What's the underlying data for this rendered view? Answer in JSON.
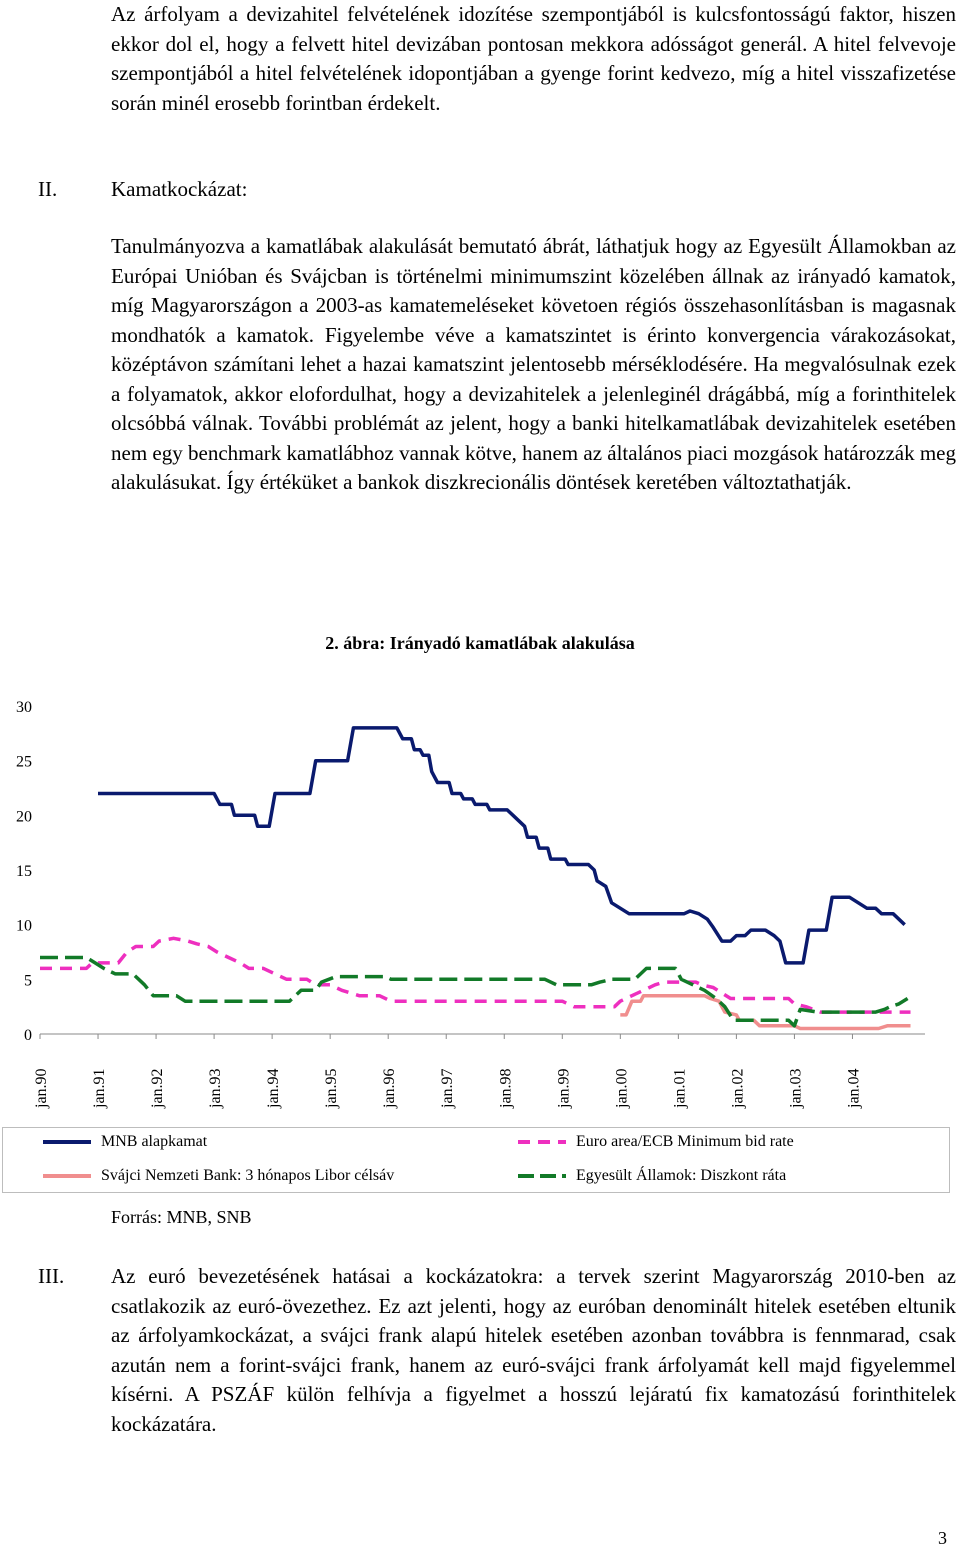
{
  "paragraphs": {
    "intro": "Az árfolyam a devizahitel felvételének idozítése szempontjából is kulcsfontosságú faktor, hiszen ekkor dol el, hogy a felvett hitel devizában pontosan mekkora adósságot generál. A hitel felvevoje szempontjából a hitel felvételének idopontjában a gyenge forint kedvezo, míg a hitel visszafizetése során minél erosebb forintban érdekelt.",
    "interest": "Tanulmányozva a kamatlábak alakulását bemutató ábrát, láthatjuk hogy az Egyesült Államokban az Európai Unióban és Svájcban is történelmi minimumszint közelében állnak az irányadó kamatok, míg Magyarországon a 2003-as kamatemeléseket követoen régiós összehasonlításban is magasnak mondhatók a kamatok. Figyelembe véve a kamatszintet is érinto konvergencia várakozásokat, középtávon számítani lehet a hazai kamatszint jelentosebb mérséklodésére. Ha megvalósulnak ezek a folyamatok, akkor elofordulhat, hogy a devizahitelek a jelenleginél drágábbá, míg a forinthitelek olcsóbbá válnak. További problémát az jelent, hogy a banki hitelkamatlábak devizahitelek esetében nem egy benchmark kamatlábhoz vannak kötve, hanem az általános piaci mozgások határozzák meg alakulásukat. Így értéküket a bankok diszkrecionális döntések keretében változtathatják.",
    "euro": "Az euró bevezetésének hatásai a kockázatokra: a tervek szerint Magyarország 2010-ben az csatlakozik az euró-övezethez. Ez azt jelenti, hogy az euróban denominált hitelek esetében eltunik az árfolyamkockázat, a svájci frank alapú hitelek esetében azonban továbbra is fennmarad, csak azután nem a forint-svájci frank, hanem az euró-svájci frank árfolyamát kell majd figyelemmel kísérni. A PSZÁF külön felhívja a figyelmet a hosszú lejáratú fix kamatozású forinthitelek kockázatára."
  },
  "sections": {
    "s2_num": "II.",
    "s2_title": "Kamatkockázat:",
    "s3_num": "III."
  },
  "figure": {
    "title": "2. ábra: Irányadó kamatlábak alakulása",
    "source": "Forrás: MNB, SNB"
  },
  "page_number": "3",
  "chart_data": {
    "type": "line",
    "title": "2. ábra: Irányadó kamatlábak alakulása",
    "xlabel": "",
    "ylabel": "",
    "x_range": [
      1990.0,
      2005.25
    ],
    "ylim": [
      0,
      30
    ],
    "yticks": [
      0,
      5,
      10,
      15,
      20,
      25,
      30
    ],
    "xticks": [
      {
        "x": 1990,
        "label": "jan.90"
      },
      {
        "x": 1991,
        "label": "jan.91"
      },
      {
        "x": 1992,
        "label": "jan.92"
      },
      {
        "x": 1993,
        "label": "jan.93"
      },
      {
        "x": 1994,
        "label": "jan.94"
      },
      {
        "x": 1995,
        "label": "jan.95"
      },
      {
        "x": 1996,
        "label": "jan.96"
      },
      {
        "x": 1997,
        "label": "jan.97"
      },
      {
        "x": 1998,
        "label": "jan.98"
      },
      {
        "x": 1999,
        "label": "jan.99"
      },
      {
        "x": 2000,
        "label": "jan.00"
      },
      {
        "x": 2001,
        "label": "jan.01"
      },
      {
        "x": 2002,
        "label": "jan.02"
      },
      {
        "x": 2003,
        "label": "jan.03"
      },
      {
        "x": 2004,
        "label": "jan.04"
      }
    ],
    "grid": false,
    "legend_position": "bottom",
    "series": [
      {
        "name": "MNB alapkamat",
        "color": "#0a1a6e",
        "style": "solid",
        "points": [
          [
            1991.0,
            22
          ],
          [
            1993.0,
            22
          ],
          [
            1993.1,
            21
          ],
          [
            1993.3,
            21
          ],
          [
            1993.35,
            20
          ],
          [
            1993.7,
            20
          ],
          [
            1993.75,
            19
          ],
          [
            1993.95,
            19
          ],
          [
            1994.05,
            22
          ],
          [
            1994.65,
            22
          ],
          [
            1994.75,
            25
          ],
          [
            1995.3,
            25
          ],
          [
            1995.4,
            28
          ],
          [
            1996.15,
            28
          ],
          [
            1996.25,
            27
          ],
          [
            1996.4,
            27
          ],
          [
            1996.45,
            26
          ],
          [
            1996.55,
            26
          ],
          [
            1996.6,
            25.5
          ],
          [
            1996.7,
            25.5
          ],
          [
            1996.75,
            24
          ],
          [
            1996.85,
            23
          ],
          [
            1997.05,
            23
          ],
          [
            1997.1,
            22
          ],
          [
            1997.25,
            22
          ],
          [
            1997.3,
            21.5
          ],
          [
            1997.45,
            21.5
          ],
          [
            1997.5,
            21
          ],
          [
            1997.7,
            21
          ],
          [
            1997.75,
            20.5
          ],
          [
            1998.05,
            20.5
          ],
          [
            1998.15,
            20
          ],
          [
            1998.25,
            19.5
          ],
          [
            1998.35,
            19
          ],
          [
            1998.4,
            18
          ],
          [
            1998.55,
            18
          ],
          [
            1998.6,
            17
          ],
          [
            1998.75,
            17
          ],
          [
            1998.8,
            16
          ],
          [
            1999.05,
            16
          ],
          [
            1999.1,
            15.5
          ],
          [
            1999.45,
            15.5
          ],
          [
            1999.55,
            15
          ],
          [
            1999.6,
            14
          ],
          [
            1999.75,
            13.5
          ],
          [
            1999.85,
            12
          ],
          [
            2000.15,
            11
          ],
          [
            2000.35,
            11
          ],
          [
            2001.1,
            11
          ],
          [
            2001.2,
            11.25
          ],
          [
            2001.35,
            11
          ],
          [
            2001.5,
            10.5
          ],
          [
            2001.6,
            9.75
          ],
          [
            2001.75,
            8.5
          ],
          [
            2001.9,
            8.5
          ],
          [
            2002.0,
            9
          ],
          [
            2002.15,
            9
          ],
          [
            2002.25,
            9.5
          ],
          [
            2002.5,
            9.5
          ],
          [
            2002.65,
            9
          ],
          [
            2002.75,
            8.5
          ],
          [
            2002.85,
            6.5
          ],
          [
            2003.15,
            6.5
          ],
          [
            2003.25,
            9.5
          ],
          [
            2003.55,
            9.5
          ],
          [
            2003.65,
            12.5
          ],
          [
            2003.95,
            12.5
          ],
          [
            2004.1,
            12
          ],
          [
            2004.25,
            11.5
          ],
          [
            2004.4,
            11.5
          ],
          [
            2004.5,
            11
          ],
          [
            2004.7,
            11
          ],
          [
            2004.8,
            10.5
          ],
          [
            2004.9,
            10
          ]
        ]
      },
      {
        "name": "Euro area/ECB Minimum bid rate",
        "color": "#ee2fbf",
        "style": "dashed",
        "points": [
          [
            1990.0,
            6
          ],
          [
            1990.8,
            6
          ],
          [
            1990.9,
            6.5
          ],
          [
            1991.35,
            6.5
          ],
          [
            1991.5,
            7.5
          ],
          [
            1991.65,
            8
          ],
          [
            1991.95,
            8
          ],
          [
            1992.05,
            8.5
          ],
          [
            1992.3,
            8.75
          ],
          [
            1992.55,
            8.5
          ],
          [
            1992.7,
            8.25
          ],
          [
            1992.9,
            8
          ],
          [
            1993.05,
            7.5
          ],
          [
            1993.25,
            7
          ],
          [
            1993.45,
            6.5
          ],
          [
            1993.6,
            6
          ],
          [
            1993.85,
            6
          ],
          [
            1994.05,
            5.5
          ],
          [
            1994.25,
            5
          ],
          [
            1994.6,
            5
          ],
          [
            1994.75,
            4.5
          ],
          [
            1995.0,
            4.5
          ],
          [
            1995.2,
            4
          ],
          [
            1995.5,
            3.5
          ],
          [
            1995.85,
            3.5
          ],
          [
            1996.05,
            3
          ],
          [
            1997.8,
            3
          ],
          [
            1998.0,
            3
          ],
          [
            1999.0,
            3
          ],
          [
            1999.2,
            2.5
          ],
          [
            1999.9,
            2.5
          ],
          [
            2000.0,
            3
          ],
          [
            2000.2,
            3.5
          ],
          [
            2000.4,
            4
          ],
          [
            2000.6,
            4.5
          ],
          [
            2000.75,
            4.75
          ],
          [
            2001.3,
            4.75
          ],
          [
            2001.4,
            4.5
          ],
          [
            2001.6,
            4.25
          ],
          [
            2001.75,
            3.75
          ],
          [
            2001.9,
            3.25
          ],
          [
            2002.9,
            3.25
          ],
          [
            2003.0,
            2.75
          ],
          [
            2003.2,
            2.5
          ],
          [
            2003.45,
            2
          ],
          [
            2004.9,
            2
          ],
          [
            2005.0,
            2
          ]
        ]
      },
      {
        "name": "Svájci Nemzeti Bank: 3 hónapos Libor célsáv",
        "color": "#f08e8e",
        "style": "solid",
        "points": [
          [
            2000.0,
            1.75
          ],
          [
            2000.1,
            1.75
          ],
          [
            2000.2,
            3
          ],
          [
            2000.35,
            3
          ],
          [
            2000.4,
            3.5
          ],
          [
            2001.45,
            3.5
          ],
          [
            2001.55,
            3.25
          ],
          [
            2001.7,
            3
          ],
          [
            2001.75,
            2.5
          ],
          [
            2001.8,
            2
          ],
          [
            2002.0,
            1.75
          ],
          [
            2002.05,
            1.25
          ],
          [
            2002.3,
            1.25
          ],
          [
            2002.4,
            0.75
          ],
          [
            2003.0,
            0.75
          ],
          [
            2003.1,
            0.5
          ],
          [
            2004.45,
            0.5
          ],
          [
            2004.6,
            0.75
          ],
          [
            2004.75,
            0.75
          ],
          [
            2005.0,
            0.75
          ]
        ]
      },
      {
        "name": "Egyesült Államok: Diszkont ráta",
        "color": "#127a28",
        "style": "dashed",
        "points": [
          [
            1990.0,
            7
          ],
          [
            1990.8,
            7
          ],
          [
            1990.95,
            6.5
          ],
          [
            1991.1,
            6
          ],
          [
            1991.3,
            5.5
          ],
          [
            1991.6,
            5.5
          ],
          [
            1991.7,
            5
          ],
          [
            1991.8,
            4.5
          ],
          [
            1991.95,
            3.5
          ],
          [
            1992.35,
            3.5
          ],
          [
            1992.5,
            3
          ],
          [
            1994.3,
            3
          ],
          [
            1994.4,
            3.5
          ],
          [
            1994.5,
            4
          ],
          [
            1994.75,
            4
          ],
          [
            1994.85,
            4.75
          ],
          [
            1995.1,
            5.25
          ],
          [
            1995.95,
            5.25
          ],
          [
            1996.05,
            5
          ],
          [
            1997.5,
            5
          ],
          [
            1998.7,
            5
          ],
          [
            1998.8,
            4.75
          ],
          [
            1998.9,
            4.5
          ],
          [
            1999.5,
            4.5
          ],
          [
            1999.65,
            4.75
          ],
          [
            1999.85,
            5
          ],
          [
            2000.25,
            5
          ],
          [
            2000.35,
            5.5
          ],
          [
            2000.45,
            6
          ],
          [
            2000.95,
            6
          ],
          [
            2001.05,
            5
          ],
          [
            2001.25,
            4.5
          ],
          [
            2001.45,
            4
          ],
          [
            2001.65,
            3.25
          ],
          [
            2001.8,
            2.5
          ],
          [
            2001.95,
            1.25
          ],
          [
            2002.9,
            1.25
          ],
          [
            2003.0,
            0.75
          ],
          [
            2003.1,
            2.25
          ],
          [
            2003.4,
            2
          ],
          [
            2004.4,
            2
          ],
          [
            2004.55,
            2.25
          ],
          [
            2004.65,
            2.5
          ],
          [
            2004.8,
            2.75
          ],
          [
            2004.95,
            3.25
          ]
        ]
      }
    ]
  }
}
